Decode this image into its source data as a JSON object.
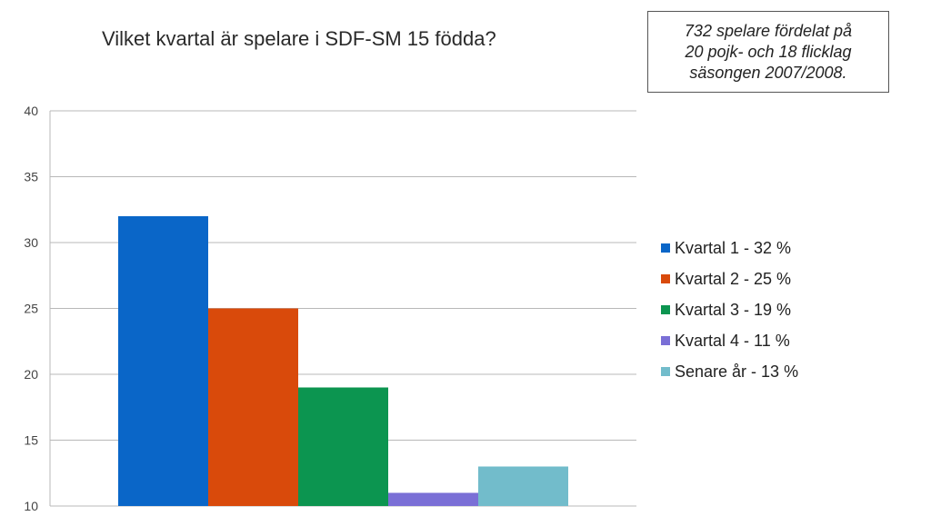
{
  "note": {
    "lines": [
      "732 spelare fördelat på",
      "20 pojk- och 18 flicklag",
      "säsongen 2007/2008."
    ]
  },
  "chart_data": {
    "type": "bar",
    "title": "Vilket kvartal är spelare i SDF-SM 15 födda?",
    "xlabel": "",
    "ylabel": "",
    "ylim": [
      10,
      40
    ],
    "yticks": [
      10,
      15,
      20,
      25,
      30,
      35,
      40
    ],
    "grid": true,
    "legend_position": "right",
    "series": [
      {
        "name": "Kvartal 1 - 32 %",
        "value": 32,
        "color": "#0a66c8"
      },
      {
        "name": "Kvartal 2 - 25 %",
        "value": 25,
        "color": "#d94a0b"
      },
      {
        "name": "Kvartal 3 - 19 %",
        "value": 19,
        "color": "#0c9550"
      },
      {
        "name": "Kvartal 4 - 11 %",
        "value": 11,
        "color": "#7a6fd6"
      },
      {
        "name": "Senare år - 13 %",
        "value": 13,
        "color": "#72bccb"
      }
    ]
  }
}
